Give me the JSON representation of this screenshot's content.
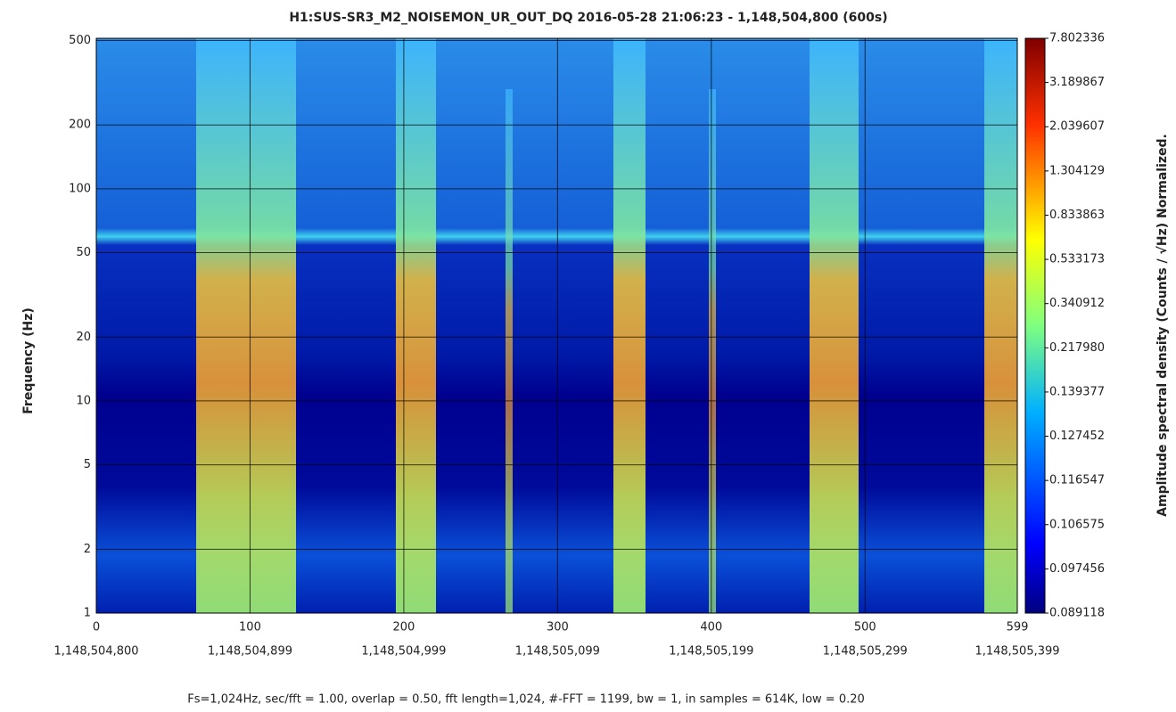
{
  "chart_data": {
    "type": "spectrogram",
    "title": "H1:SUS-SR3_M2_NOISEMON_UR_OUT_DQ 2016-05-28 21:06:23 - 1,148,504,800 (600s)",
    "y_label": "Frequency (Hz)",
    "colorbar_label": "Amplitude spectral density (Counts / √Hz) Normalized.",
    "footer": "Fs=1,024Hz, sec/fft = 1.00, overlap = 0.50, fft length=1,024, #-FFT = 1199, bw = 1, in samples = 614K, low = 0.20",
    "xlim": [
      0,
      599
    ],
    "xticks": [
      0,
      100,
      200,
      300,
      400,
      500,
      599
    ],
    "xtick_secondary_labels": [
      "1,148,504,800",
      "1,148,504,899",
      "1,148,504,999",
      "1,148,505,099",
      "1,148,505,199",
      "1,148,505,299",
      "1,148,505,399"
    ],
    "ylim": [
      1,
      512
    ],
    "y_log": true,
    "yticks": [
      1,
      2,
      5,
      10,
      20,
      50,
      100,
      200,
      500
    ],
    "grid": true,
    "colorbar_ticks": [
      {
        "value": 0.089118,
        "label": "0.089118"
      },
      {
        "value": 0.097456,
        "label": "0.097456"
      },
      {
        "value": 0.106575,
        "label": "0.106575"
      },
      {
        "value": 0.116547,
        "label": "0.116547"
      },
      {
        "value": 0.127452,
        "label": "0.127452"
      },
      {
        "value": 0.139377,
        "label": "0.139377"
      },
      {
        "value": 0.21798,
        "label": "0.217980"
      },
      {
        "value": 0.340912,
        "label": "0.340912"
      },
      {
        "value": 0.533173,
        "label": "0.533173"
      },
      {
        "value": 0.833863,
        "label": "0.833863"
      },
      {
        "value": 1.304129,
        "label": "1.304129"
      },
      {
        "value": 2.039607,
        "label": "2.039607"
      },
      {
        "value": 3.189867,
        "label": "3.189867"
      },
      {
        "value": 7.802336,
        "label": "7.802336"
      }
    ]
  }
}
